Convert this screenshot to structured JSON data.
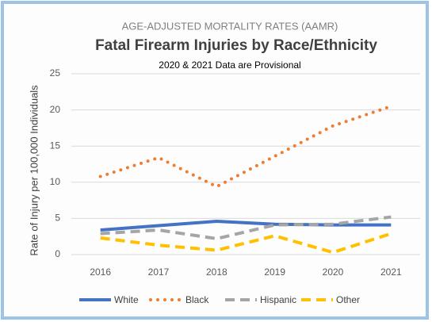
{
  "chart_data": {
    "type": "line",
    "supertitle": "AGE-ADJUSTED MORTALITY RATES (AAMR)",
    "title": "Fatal Firearm Injuries by Race/Ethnicity",
    "subtitle": "2020 & 2021 Data are Provisional",
    "y_label": "Rate of Injury per 100,000 Individuals",
    "categories": [
      "2016",
      "2017",
      "2018",
      "2019",
      "2020",
      "2021"
    ],
    "series": [
      {
        "name": "White",
        "color": "#4472c4",
        "style": "solid",
        "values": [
          3.4,
          4.0,
          4.6,
          4.2,
          4.1,
          4.1
        ]
      },
      {
        "name": "Black",
        "color": "#ed7d31",
        "style": "dotted",
        "values": [
          10.8,
          13.4,
          9.4,
          13.6,
          17.8,
          20.5
        ]
      },
      {
        "name": "Hispanic",
        "color": "#a5a5a5",
        "style": "dashed",
        "values": [
          2.9,
          3.4,
          2.2,
          4.1,
          4.2,
          5.2
        ]
      },
      {
        "name": "Other",
        "color": "#ffc000",
        "style": "dashed",
        "values": [
          2.3,
          1.3,
          0.6,
          2.6,
          0.3,
          2.9
        ]
      }
    ],
    "ylim": [
      0,
      25
    ],
    "yticks": [
      0,
      5,
      10,
      15,
      20,
      25
    ],
    "grid": true,
    "legend": "bottom"
  }
}
